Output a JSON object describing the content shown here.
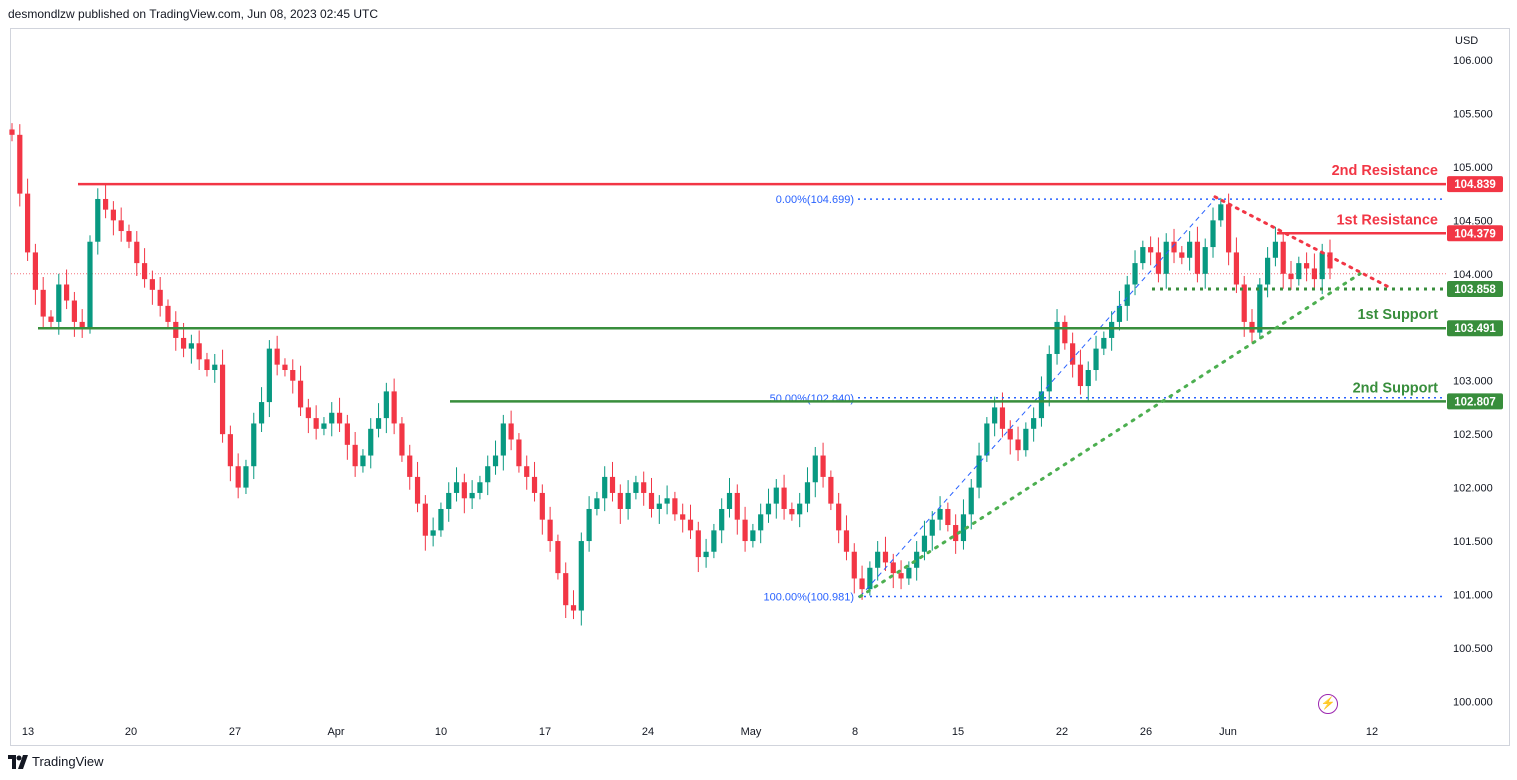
{
  "header": {
    "published_by": "desmondlzw published on TradingView.com, Jun 08, 2023 02:45 UTC"
  },
  "footer": {
    "brand": "TradingView"
  },
  "icons": {
    "tv_logo": "tradingview-logo-icon",
    "flash": "lightning-icon"
  },
  "colors": {
    "up": "#089981",
    "down": "#f23645",
    "resistance": "#f23645",
    "support": "#388e3c",
    "fib": "#2962ff",
    "dotted_support": "#4caf50"
  },
  "chart_data": {
    "type": "candlestick",
    "currency": "USD",
    "y_ticks": [
      "106.000",
      "105.500",
      "105.000",
      "104.500",
      "104.000",
      "103.500",
      "103.000",
      "102.500",
      "102.000",
      "101.500",
      "101.000",
      "100.500",
      "100.000"
    ],
    "x_ticks": [
      "13",
      "20",
      "27",
      "Apr",
      "10",
      "17",
      "24",
      "May",
      "8",
      "15",
      "22",
      "26",
      "Jun",
      "12"
    ],
    "ylim": [
      99.6,
      106.3
    ],
    "levels": [
      {
        "name": "2nd Resistance",
        "value": 104.839,
        "label": "104.839",
        "color": "#f23645"
      },
      {
        "name": "1st Resistance",
        "value": 104.379,
        "label": "104.379",
        "color": "#f23645"
      },
      {
        "name": "",
        "value": 103.858,
        "label": "103.858",
        "color": "#388e3c"
      },
      {
        "name": "1st Support",
        "value": 103.491,
        "label": "103.491",
        "color": "#388e3c"
      },
      {
        "name": "2nd Support",
        "value": 102.807,
        "label": "102.807",
        "color": "#388e3c"
      }
    ],
    "fibonacci": [
      {
        "label": "0.00%(104.699)",
        "value": 104.699
      },
      {
        "label": "50.00%(102.840)",
        "value": 102.84
      },
      {
        "label": "100.00%(100.981)",
        "value": 100.981
      }
    ],
    "current_price_line": 104.0,
    "closes": [
      105.3,
      104.75,
      104.2,
      103.85,
      103.6,
      103.55,
      103.9,
      103.75,
      103.55,
      103.5,
      104.3,
      104.7,
      104.6,
      104.5,
      104.4,
      104.3,
      104.1,
      103.95,
      103.85,
      103.7,
      103.55,
      103.4,
      103.3,
      103.35,
      103.2,
      103.1,
      103.15,
      102.5,
      102.2,
      102.0,
      102.2,
      102.6,
      102.8,
      103.3,
      103.15,
      103.1,
      103.0,
      102.75,
      102.65,
      102.55,
      102.6,
      102.7,
      102.6,
      102.4,
      102.2,
      102.3,
      102.55,
      102.65,
      102.9,
      102.6,
      102.3,
      102.1,
      101.85,
      101.55,
      101.6,
      101.8,
      101.95,
      102.05,
      101.9,
      101.95,
      102.05,
      102.2,
      102.3,
      102.6,
      102.45,
      102.2,
      102.1,
      101.95,
      101.7,
      101.5,
      101.2,
      100.9,
      100.85,
      101.5,
      101.8,
      101.9,
      102.1,
      101.95,
      101.8,
      101.95,
      102.05,
      101.95,
      101.8,
      101.85,
      101.9,
      101.75,
      101.7,
      101.6,
      101.35,
      101.4,
      101.6,
      101.8,
      101.95,
      101.7,
      101.5,
      101.6,
      101.75,
      101.85,
      102.0,
      101.8,
      101.75,
      101.85,
      102.05,
      102.3,
      102.1,
      101.85,
      101.6,
      101.4,
      101.15,
      101.05,
      101.25,
      101.4,
      101.3,
      101.2,
      101.15,
      101.25,
      101.4,
      101.55,
      101.7,
      101.8,
      101.65,
      101.5,
      101.75,
      102.0,
      102.3,
      102.6,
      102.75,
      102.55,
      102.45,
      102.35,
      102.55,
      102.65,
      102.9,
      103.25,
      103.55,
      103.35,
      103.15,
      102.95,
      103.1,
      103.3,
      103.4,
      103.55,
      103.7,
      103.9,
      104.1,
      104.25,
      104.2,
      104.0,
      104.3,
      104.2,
      104.15,
      104.3,
      104.0,
      104.25,
      104.5,
      104.65,
      104.2,
      103.9,
      103.55,
      103.45,
      103.9,
      104.15,
      104.3,
      104.0,
      103.95,
      104.1,
      104.05,
      103.95,
      104.2,
      104.05
    ]
  }
}
